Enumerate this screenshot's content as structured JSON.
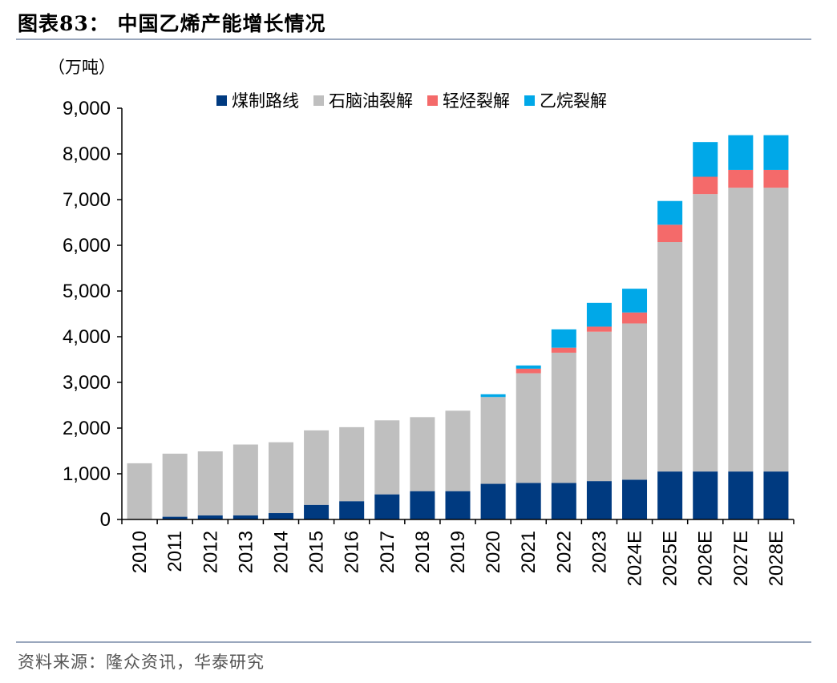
{
  "figure": {
    "title": "图表83：  中国乙烯产能增长情况",
    "unit": "（万吨）",
    "source": "资料来源：隆众资讯，华泰研究"
  },
  "colors": {
    "coal": "#003a80",
    "naphtha": "#bfbfbf",
    "light_hydrocarbon": "#f46a6a",
    "ethane": "#00a8e8",
    "axis": "#000000"
  },
  "chart_data": {
    "type": "bar",
    "stacked": true,
    "title": "中国乙烯产能增长情况",
    "ylabel": "（万吨）",
    "xlabel": "",
    "ylim": [
      0,
      9000
    ],
    "yticks": [
      0,
      1000,
      2000,
      3000,
      4000,
      5000,
      6000,
      7000,
      8000,
      9000
    ],
    "ytick_labels": [
      "0",
      "1,000",
      "2,000",
      "3,000",
      "4,000",
      "5,000",
      "6,000",
      "7,000",
      "8,000",
      "9,000"
    ],
    "categories": [
      "2010",
      "2011",
      "2012",
      "2013",
      "2014",
      "2015",
      "2016",
      "2017",
      "2018",
      "2019",
      "2020",
      "2021",
      "2022",
      "2023",
      "2024E",
      "2025E",
      "2026E",
      "2027E",
      "2028E"
    ],
    "legend_position": "top",
    "series": [
      {
        "name": "煤制路线",
        "color_key": "coal",
        "values": [
          0,
          60,
          90,
          90,
          140,
          320,
          400,
          550,
          620,
          620,
          780,
          800,
          800,
          840,
          870,
          1050,
          1050,
          1050,
          1050
        ]
      },
      {
        "name": "石脑油裂解",
        "color_key": "naphtha",
        "values": [
          1230,
          1380,
          1400,
          1550,
          1550,
          1630,
          1620,
          1620,
          1620,
          1760,
          1900,
          2400,
          2850,
          3270,
          3420,
          5020,
          6070,
          6210,
          6210
        ]
      },
      {
        "name": "轻烃裂解",
        "color_key": "light_hydrocarbon",
        "values": [
          0,
          0,
          0,
          0,
          0,
          0,
          0,
          0,
          0,
          0,
          0,
          100,
          110,
          110,
          240,
          380,
          380,
          390,
          390
        ]
      },
      {
        "name": "乙烷裂解",
        "color_key": "ethane",
        "values": [
          0,
          0,
          0,
          0,
          0,
          0,
          0,
          0,
          0,
          0,
          60,
          70,
          400,
          520,
          520,
          520,
          760,
          760,
          760
        ]
      }
    ]
  }
}
